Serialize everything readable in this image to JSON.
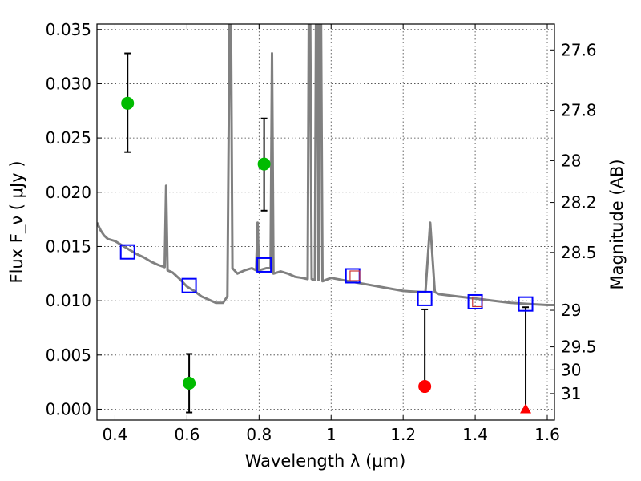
{
  "chart_data": {
    "type": "scatter",
    "xlabel": "Wavelength  λ (μm)",
    "ylabel": "Flux  F_ν  ( μJy )",
    "y2label": "Magnitude (AB)",
    "xlim": [
      0.35,
      1.62
    ],
    "ylim": [
      -0.001,
      0.0355
    ],
    "grid": true,
    "x_ticks": [
      0.4,
      0.6,
      0.8,
      1.0,
      1.2,
      1.4,
      1.6
    ],
    "x_tick_labels": [
      "0.4",
      "0.6",
      "0.8",
      "1",
      "1.2",
      "1.4",
      "1.6"
    ],
    "y_ticks": [
      0.0,
      0.005,
      0.01,
      0.015,
      0.02,
      0.025,
      0.03,
      0.035
    ],
    "y_tick_labels": [
      "0.000",
      "0.005",
      "0.010",
      "0.015",
      "0.020",
      "0.025",
      "0.030",
      "0.035"
    ],
    "y2_ticks": [
      {
        "label": "27.6",
        "mag": 27.6
      },
      {
        "label": "27.8",
        "mag": 27.8
      },
      {
        "label": "28",
        "mag": 28.0
      },
      {
        "label": "28.2",
        "mag": 28.2
      },
      {
        "label": "28.5",
        "mag": 28.5
      },
      {
        "label": "29",
        "mag": 29.0
      },
      {
        "label": "29.5",
        "mag": 29.5
      },
      {
        "label": "30",
        "mag": 30.0
      },
      {
        "label": "31",
        "mag": 31.0
      }
    ],
    "sed_model": {
      "color": "#808080",
      "points": [
        [
          0.35,
          0.0172
        ],
        [
          0.36,
          0.0165
        ],
        [
          0.37,
          0.016
        ],
        [
          0.38,
          0.0157
        ],
        [
          0.4,
          0.0155
        ],
        [
          0.42,
          0.0151
        ],
        [
          0.44,
          0.0147
        ],
        [
          0.46,
          0.0143
        ],
        [
          0.48,
          0.014
        ],
        [
          0.5,
          0.0136
        ],
        [
          0.52,
          0.0133
        ],
        [
          0.538,
          0.0131
        ],
        [
          0.542,
          0.0206
        ],
        [
          0.546,
          0.0128
        ],
        [
          0.56,
          0.0126
        ],
        [
          0.58,
          0.012
        ],
        [
          0.6,
          0.0113
        ],
        [
          0.62,
          0.0109
        ],
        [
          0.64,
          0.0104
        ],
        [
          0.66,
          0.0101
        ],
        [
          0.68,
          0.0098
        ],
        [
          0.7,
          0.0098
        ],
        [
          0.712,
          0.0104
        ],
        [
          0.718,
          0.0355
        ],
        [
          0.722,
          0.0355
        ],
        [
          0.726,
          0.013
        ],
        [
          0.74,
          0.0125
        ],
        [
          0.76,
          0.0128
        ],
        [
          0.78,
          0.013
        ],
        [
          0.792,
          0.0128
        ],
        [
          0.796,
          0.0172
        ],
        [
          0.8,
          0.0128
        ],
        [
          0.82,
          0.013
        ],
        [
          0.832,
          0.013
        ],
        [
          0.836,
          0.0328
        ],
        [
          0.84,
          0.0125
        ],
        [
          0.86,
          0.0127
        ],
        [
          0.88,
          0.0125
        ],
        [
          0.9,
          0.0122
        ],
        [
          0.92,
          0.0121
        ],
        [
          0.935,
          0.012
        ],
        [
          0.938,
          0.0355
        ],
        [
          0.942,
          0.0355
        ],
        [
          0.946,
          0.012
        ],
        [
          0.955,
          0.0119
        ],
        [
          0.958,
          0.0355
        ],
        [
          0.962,
          0.0355
        ],
        [
          0.965,
          0.0119
        ],
        [
          0.968,
          0.0355
        ],
        [
          0.972,
          0.0355
        ],
        [
          0.976,
          0.0118
        ],
        [
          1.0,
          0.0121
        ],
        [
          1.05,
          0.0118
        ],
        [
          1.1,
          0.0115
        ],
        [
          1.15,
          0.0112
        ],
        [
          1.2,
          0.0109
        ],
        [
          1.25,
          0.0108
        ],
        [
          1.262,
          0.0108
        ],
        [
          1.275,
          0.0172
        ],
        [
          1.288,
          0.0108
        ],
        [
          1.3,
          0.0106
        ],
        [
          1.35,
          0.0104
        ],
        [
          1.4,
          0.0102
        ],
        [
          1.45,
          0.01
        ],
        [
          1.5,
          0.0098
        ],
        [
          1.55,
          0.0097
        ],
        [
          1.6,
          0.0096
        ],
        [
          1.62,
          0.0096
        ]
      ]
    },
    "model_photometry_blue": {
      "color": "#0000ff",
      "x": [
        0.435,
        0.606,
        0.814,
        1.06,
        1.26,
        1.4,
        1.54
      ],
      "y": [
        0.0145,
        0.0114,
        0.0133,
        0.0123,
        0.0102,
        0.0099,
        0.0097
      ]
    },
    "model_photometry_red": {
      "color": "#cc3333",
      "x": [
        1.066,
        1.406
      ],
      "y": [
        0.0123,
        0.0099
      ]
    },
    "detections": {
      "color": "#00bb00",
      "points": [
        {
          "x": 0.435,
          "y": 0.0282,
          "lo": 0.0237,
          "hi": 0.0328
        },
        {
          "x": 0.606,
          "y": 0.0024,
          "lo": -0.0003,
          "hi": 0.0051
        },
        {
          "x": 0.814,
          "y": 0.0226,
          "lo": 0.0183,
          "hi": 0.0268
        }
      ]
    },
    "nondetections": {
      "color": "#ff0000",
      "circles": [
        {
          "x": 1.26,
          "y": 0.0021,
          "hi": 0.0092
        }
      ],
      "triangles": [
        {
          "x": 1.54,
          "y": 0.0,
          "hi": 0.0094
        }
      ]
    }
  }
}
